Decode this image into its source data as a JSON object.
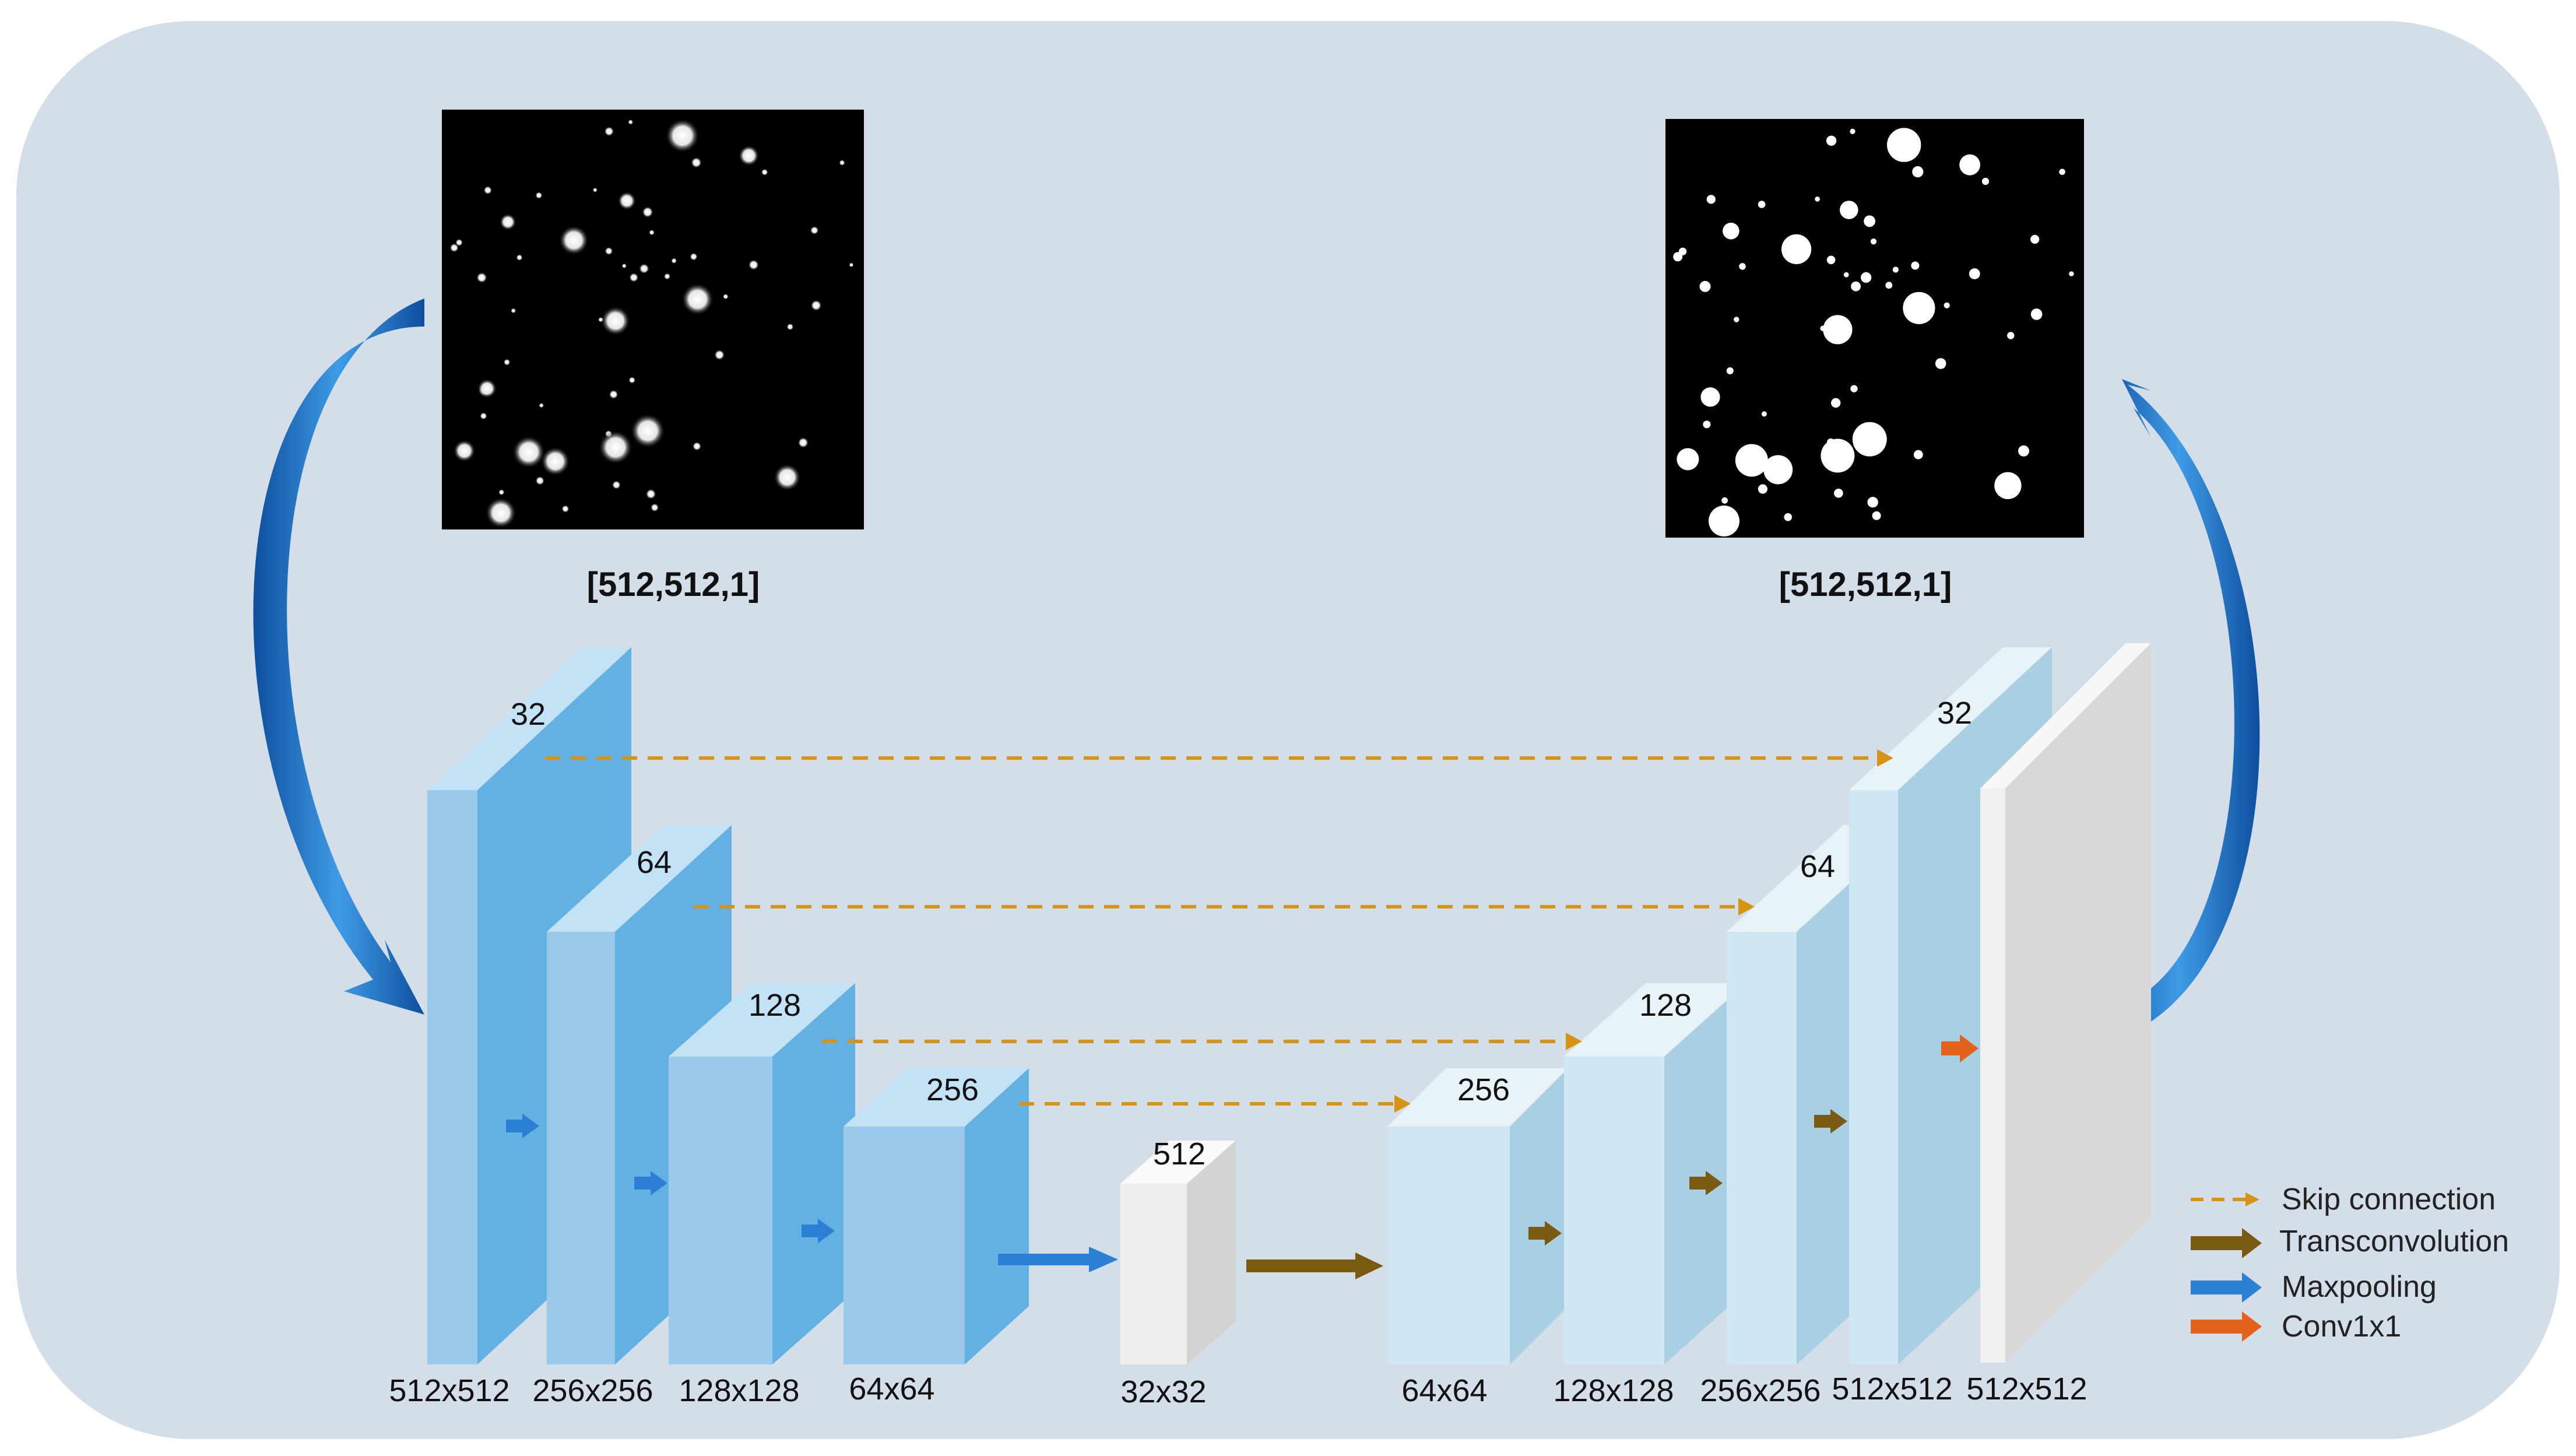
{
  "input_image": {
    "label": "[512,512,1]"
  },
  "output_image": {
    "label": "[512,512,1]"
  },
  "encoder": [
    {
      "channels": "32",
      "size": "512x512"
    },
    {
      "channels": "64",
      "size": "256x256"
    },
    {
      "channels": "128",
      "size": "128x128"
    },
    {
      "channels": "256",
      "size": "64x64"
    }
  ],
  "bottleneck": {
    "channels": "512",
    "size": "32x32"
  },
  "decoder": [
    {
      "channels": "256",
      "size": "64x64"
    },
    {
      "channels": "128",
      "size": "128x128"
    },
    {
      "channels": "64",
      "size": "256x256"
    },
    {
      "channels": "32",
      "size": "512x512"
    }
  ],
  "output_block": {
    "size": "512x512"
  },
  "legend": [
    {
      "label": "Skip connection",
      "color": "#d69412",
      "style": "dashed"
    },
    {
      "label": "Transconvolution",
      "color": "#7a5a10",
      "style": "arrow"
    },
    {
      "label": "Maxpooling",
      "color": "#2b7fd4",
      "style": "arrow"
    },
    {
      "label": "Conv1x1",
      "color": "#e4631c",
      "style": "arrow"
    }
  ],
  "colors": {
    "panel": "#d3dee9",
    "encoder_front": "#9ac9ea",
    "encoder_side": "#62b1e2",
    "encoder_top": "#c4e2f5",
    "decoder_front": "#cfe7f2",
    "decoder_side": "#a8d0e2",
    "decoder_top": "#e8f3f8",
    "gray_front": "#efefef",
    "gray_side": "#d3d3d3",
    "curved_arrow": "#1f6fc4"
  }
}
